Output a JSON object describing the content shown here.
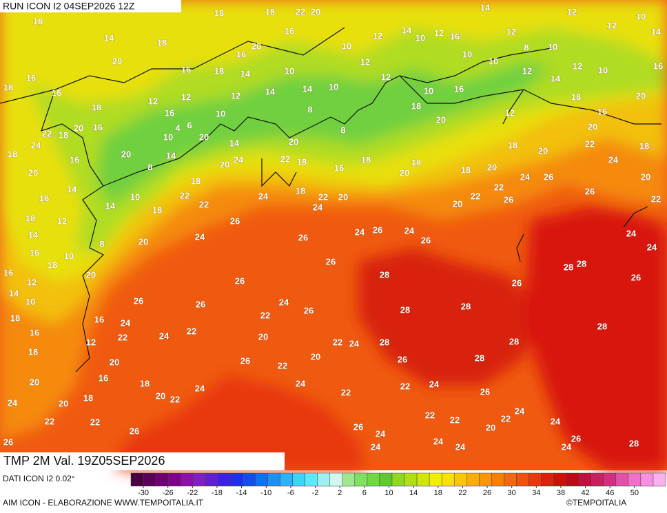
{
  "header": {
    "run": "RUN ICON I2 04SEP2026 12Z"
  },
  "footer": {
    "title": "TMP 2M Val. 19Z05SEP2026",
    "source": "DATI ICON I2 0.02°",
    "credit": "AIM ICON - ELABORAZIONE WWW.TEMPOITALIA.IT",
    "brand": "©TEMPOITALIA"
  },
  "legend": {
    "colors": [
      "#4a0040",
      "#5c005a",
      "#6e0074",
      "#80008e",
      "#8c10a8",
      "#8020c0",
      "#6020d0",
      "#4020e0",
      "#2030e8",
      "#1050e8",
      "#1070f0",
      "#2090f0",
      "#30b0f8",
      "#40d0f8",
      "#60e8f8",
      "#a0f0f0",
      "#d0f8f0",
      "#a0e890",
      "#80e060",
      "#70d840",
      "#60c830",
      "#90d820",
      "#b0e010",
      "#d0e800",
      "#f0f000",
      "#f8e000",
      "#f8c800",
      "#f8b000",
      "#f89800",
      "#f88000",
      "#f06810",
      "#f05010",
      "#e83810",
      "#e02008",
      "#d01008",
      "#c00818",
      "#c01040",
      "#c82060",
      "#d03080",
      "#e050a8",
      "#f070c8",
      "#f890e0",
      "#f8b0f0"
    ],
    "ticks": [
      -30,
      -26,
      -22,
      -18,
      -14,
      -10,
      -6,
      -2,
      2,
      6,
      10,
      14,
      18,
      22,
      26,
      30,
      34,
      38,
      42,
      46,
      50
    ]
  },
  "map": {
    "labels": [
      18,
      14,
      18,
      20,
      18,
      16,
      16,
      18,
      18,
      18,
      22,
      20,
      20,
      16,
      16,
      18,
      14,
      16,
      10,
      12,
      14,
      10,
      12,
      16,
      14,
      12,
      12,
      12,
      10,
      14,
      10,
      8,
      10,
      10,
      12,
      12,
      10,
      16,
      20,
      14,
      18,
      16,
      20,
      18,
      22,
      24,
      20,
      22,
      24,
      24,
      26,
      28,
      28,
      28,
      28,
      28,
      26,
      28,
      28,
      28,
      28,
      26,
      24,
      24,
      26,
      26,
      26,
      26,
      26,
      26,
      24,
      26,
      24,
      20,
      22,
      18,
      24,
      24,
      26,
      22,
      20,
      22,
      24,
      22,
      24,
      20,
      12,
      16,
      16,
      18,
      20,
      24,
      20,
      22,
      18,
      16,
      18,
      20,
      22,
      24,
      26,
      22,
      24,
      20,
      22,
      24,
      22,
      26,
      22,
      24,
      26,
      22,
      22,
      22,
      24,
      20,
      24,
      26,
      24,
      24,
      24,
      24,
      26,
      24,
      26,
      22,
      26,
      28,
      20,
      18,
      24,
      22,
      18,
      20,
      20,
      8,
      14,
      20,
      24,
      22,
      18,
      16,
      18,
      20,
      18,
      18,
      20,
      22,
      22,
      20,
      26,
      24,
      26,
      26,
      20,
      18,
      20,
      18,
      10,
      16,
      12,
      12,
      12,
      10,
      14,
      10,
      14,
      12,
      10,
      20,
      14,
      20,
      8,
      8,
      12,
      16,
      12,
      4,
      6,
      10,
      16,
      16,
      14,
      18,
      18,
      12,
      14,
      14,
      10,
      18,
      20,
      22,
      22,
      18,
      8,
      16,
      10,
      18,
      20,
      16,
      12,
      14,
      10,
      18
    ]
  }
}
